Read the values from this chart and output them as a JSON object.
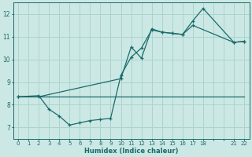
{
  "xlabel": "Humidex (Indice chaleur)",
  "bg_color": "#cce8e4",
  "line_color": "#1a6b6b",
  "grid_color": "#aad4ce",
  "xtick_positions": [
    0,
    1,
    2,
    3,
    4,
    5,
    6,
    7,
    8,
    9,
    10,
    11,
    12,
    13,
    14,
    15,
    16,
    17,
    18,
    19,
    20,
    21,
    22
  ],
  "xtick_labels": [
    "0",
    "1",
    "2",
    "3",
    "4",
    "5",
    "6",
    "7",
    "8",
    "9",
    "10",
    "11",
    "12",
    "13",
    "14",
    "15",
    "16",
    "17",
    "18",
    "",
    "",
    "21",
    "22"
  ],
  "yticks": [
    7,
    8,
    9,
    10,
    11,
    12
  ],
  "xlim": [
    -0.5,
    22.5
  ],
  "ylim": [
    6.5,
    12.5
  ],
  "line1_x": [
    0,
    1,
    2,
    3,
    4,
    5,
    6,
    7,
    8,
    9,
    10,
    11,
    12,
    13,
    14,
    15,
    16,
    17,
    18,
    19,
    20,
    21,
    22
  ],
  "line1_y": [
    8.35,
    8.35,
    8.35,
    8.35,
    8.35,
    8.35,
    8.35,
    8.35,
    8.35,
    8.35,
    8.35,
    8.35,
    8.35,
    8.35,
    8.35,
    8.35,
    8.35,
    8.35,
    8.35,
    8.35,
    8.35,
    8.35,
    8.35
  ],
  "line2_x": [
    0,
    2,
    3,
    4,
    5,
    6,
    7,
    8,
    9,
    10,
    11,
    12,
    13,
    14,
    15,
    16,
    17,
    21,
    22
  ],
  "line2_y": [
    8.35,
    8.4,
    7.8,
    7.5,
    7.1,
    7.2,
    7.3,
    7.35,
    7.4,
    9.3,
    10.1,
    10.5,
    11.3,
    11.2,
    11.15,
    11.1,
    11.5,
    10.75,
    10.8
  ],
  "line3_x": [
    0,
    2,
    10,
    11,
    12,
    13,
    14,
    15,
    16,
    17,
    18,
    21,
    22
  ],
  "line3_y": [
    8.35,
    8.35,
    9.15,
    10.55,
    10.05,
    11.35,
    11.2,
    11.15,
    11.1,
    11.7,
    12.25,
    10.75,
    10.8
  ]
}
